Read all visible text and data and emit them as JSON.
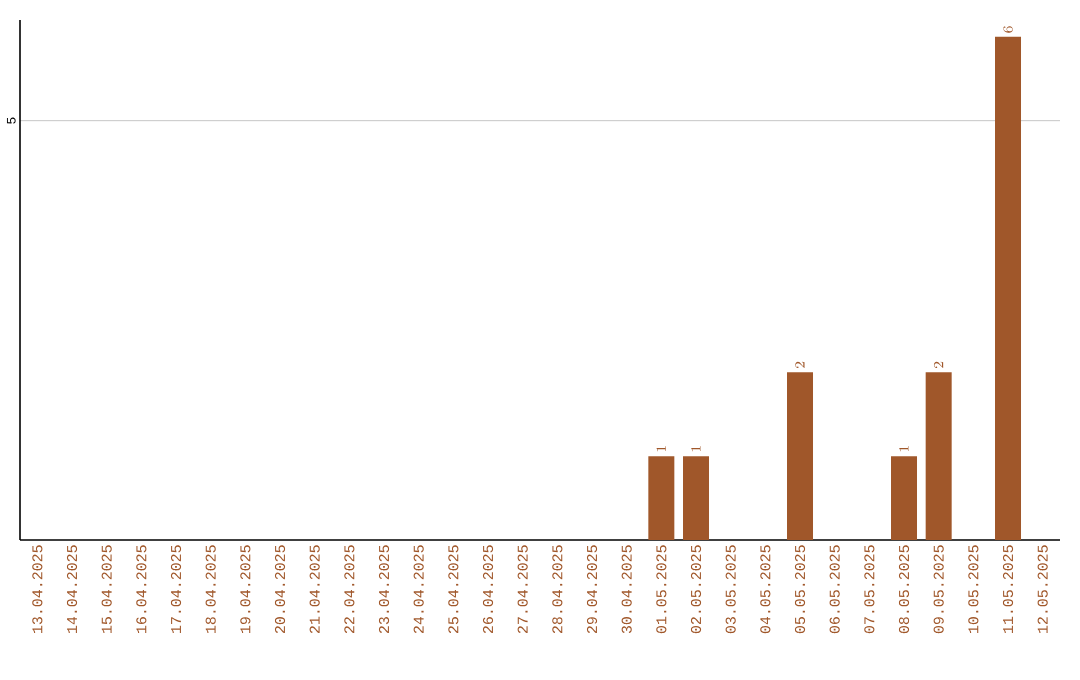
{
  "chart_data": {
    "type": "bar",
    "categories": [
      "13.04.2025",
      "14.04.2025",
      "15.04.2025",
      "16.04.2025",
      "17.04.2025",
      "18.04.2025",
      "19.04.2025",
      "20.04.2025",
      "21.04.2025",
      "22.04.2025",
      "23.04.2025",
      "24.04.2025",
      "25.04.2025",
      "26.04.2025",
      "27.04.2025",
      "28.04.2025",
      "29.04.2025",
      "30.04.2025",
      "01.05.2025",
      "02.05.2025",
      "03.05.2025",
      "04.05.2025",
      "05.05.2025",
      "06.05.2025",
      "07.05.2025",
      "08.05.2025",
      "09.05.2025",
      "10.05.2025",
      "11.05.2025",
      "12.05.2025"
    ],
    "values": [
      null,
      null,
      null,
      null,
      null,
      null,
      null,
      null,
      null,
      null,
      null,
      null,
      null,
      null,
      null,
      null,
      null,
      null,
      1,
      1,
      null,
      null,
      2,
      null,
      null,
      1,
      2,
      null,
      6,
      null
    ],
    "color": "#a0572a",
    "ylim": [
      0,
      6.2
    ],
    "yticks": [
      5
    ],
    "grid": "y",
    "data_labels": true
  }
}
